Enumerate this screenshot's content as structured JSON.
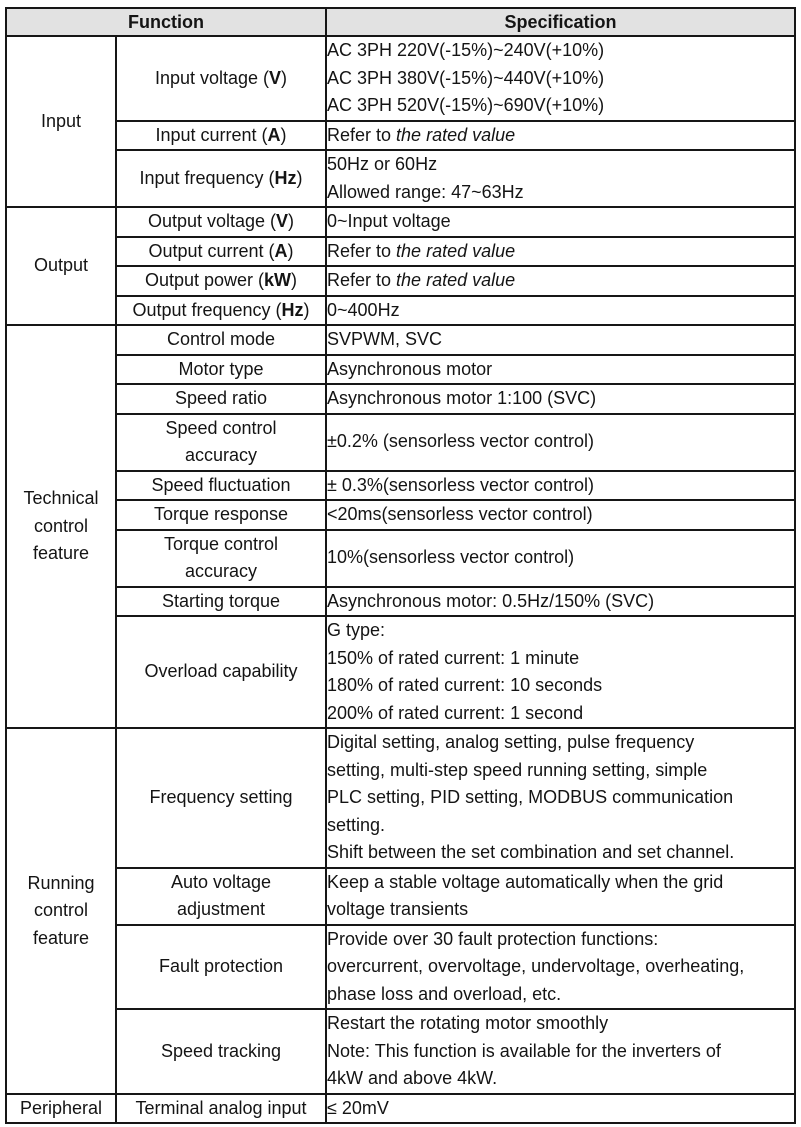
{
  "header": {
    "function": "Function",
    "specification": "Specification"
  },
  "colors": {
    "header_bg": "#e2e2e2",
    "border": "#161616",
    "text": "#141414",
    "page_bg": "#ffffff"
  },
  "sections": [
    {
      "group_lines": [
        "Input"
      ],
      "rows": [
        {
          "item_lines": [
            "Input voltage (**V**)"
          ],
          "spec_lines": [
            "AC 3PH 220V(-15%)~240V(+10%)",
            "AC 3PH 380V(-15%)~440V(+10%)",
            "AC 3PH 520V(-15%)~690V(+10%)"
          ]
        },
        {
          "item_lines": [
            "Input current (**A**)"
          ],
          "spec_lines": [
            "Refer to *the rated value*"
          ]
        },
        {
          "item_lines": [
            "Input frequency (**Hz**)"
          ],
          "spec_lines": [
            "50Hz or 60Hz",
            "Allowed range: 47~63Hz"
          ]
        }
      ]
    },
    {
      "group_lines": [
        "Output"
      ],
      "rows": [
        {
          "item_lines": [
            "Output voltage (**V**)"
          ],
          "spec_lines": [
            "0~Input voltage"
          ]
        },
        {
          "item_lines": [
            "Output current (**A**)"
          ],
          "spec_lines": [
            "Refer to *the rated value*"
          ]
        },
        {
          "item_lines": [
            "Output power (**kW**)"
          ],
          "spec_lines": [
            "Refer to *the rated value*"
          ]
        },
        {
          "item_lines": [
            "Output frequency (**Hz**)"
          ],
          "spec_lines": [
            "0~400Hz"
          ]
        }
      ]
    },
    {
      "group_lines": [
        "Technical",
        "control",
        "feature"
      ],
      "rows": [
        {
          "item_lines": [
            "Control mode"
          ],
          "spec_lines": [
            "SVPWM, SVC"
          ]
        },
        {
          "item_lines": [
            "Motor type"
          ],
          "spec_lines": [
            "Asynchronous motor"
          ]
        },
        {
          "item_lines": [
            "Speed ratio"
          ],
          "spec_lines": [
            "Asynchronous motor 1:100 (SVC)"
          ]
        },
        {
          "item_lines": [
            "Speed control",
            "accuracy"
          ],
          "spec_lines": [
            "±0.2% (sensorless vector control)"
          ]
        },
        {
          "item_lines": [
            "Speed fluctuation"
          ],
          "spec_lines": [
            "± 0.3%(sensorless vector control)"
          ]
        },
        {
          "item_lines": [
            "Torque response"
          ],
          "spec_lines": [
            "<20ms(sensorless vector control)"
          ]
        },
        {
          "item_lines": [
            "Torque control",
            "accuracy"
          ],
          "spec_lines": [
            "10%(sensorless vector control)"
          ]
        },
        {
          "item_lines": [
            "Starting torque"
          ],
          "spec_lines": [
            "Asynchronous motor: 0.5Hz/150% (SVC)"
          ]
        },
        {
          "item_lines": [
            "Overload capability"
          ],
          "spec_lines": [
            "G type:",
            "150% of rated current: 1 minute",
            "180% of rated current: 10 seconds",
            "200% of rated current: 1 second"
          ]
        }
      ]
    },
    {
      "group_lines": [
        "Running",
        "control",
        "feature"
      ],
      "rows": [
        {
          "item_lines": [
            "Frequency setting"
          ],
          "spec_lines": [
            "Digital setting, analog setting, pulse frequency",
            "setting, multi-step speed running setting, simple",
            "PLC setting, PID setting, MODBUS communication",
            "setting.",
            "Shift between the set combination and set channel."
          ]
        },
        {
          "item_lines": [
            "Auto voltage",
            "adjustment"
          ],
          "spec_lines": [
            "Keep a stable voltage automatically when the grid",
            "voltage transients"
          ]
        },
        {
          "item_lines": [
            "Fault protection"
          ],
          "spec_lines": [
            "Provide over 30 fault protection functions:",
            "overcurrent, overvoltage, undervoltage, overheating,",
            "phase loss and overload, etc."
          ]
        },
        {
          "item_lines": [
            "Speed tracking"
          ],
          "spec_lines": [
            "Restart the rotating motor smoothly",
            "Note: This function is available for the inverters of",
            "4kW and above 4kW."
          ]
        }
      ]
    },
    {
      "group_lines": [
        "Peripheral"
      ],
      "rows": [
        {
          "item_lines": [
            "Terminal analog input"
          ],
          "spec_lines": [
            "≤ 20mV"
          ]
        }
      ]
    }
  ]
}
